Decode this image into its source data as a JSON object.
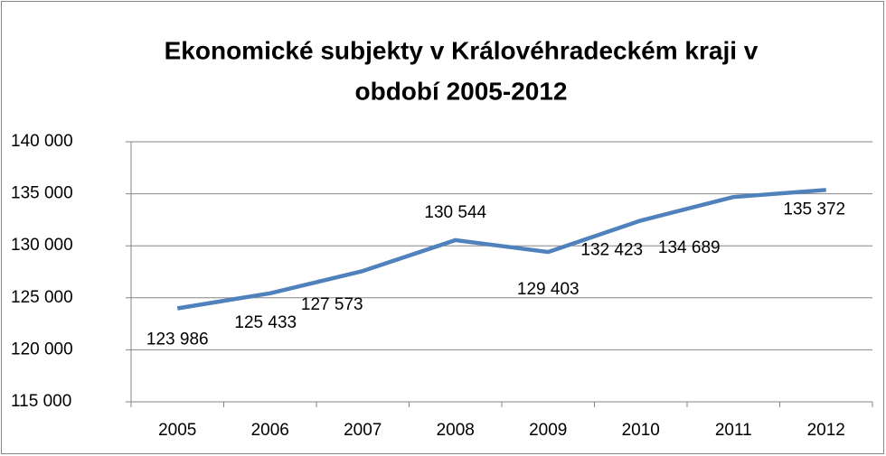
{
  "chart_data": {
    "type": "line",
    "title": "Ekonomické subjekty v Královéhradeckém kraji v období 2005-2012",
    "categories": [
      "2005",
      "2006",
      "2007",
      "2008",
      "2009",
      "2010",
      "2011",
      "2012"
    ],
    "series": [
      {
        "name": "Ekonomické subjekty",
        "color": "#4f81bd",
        "values": [
          123986,
          125433,
          127573,
          130544,
          129403,
          132423,
          134689,
          135372
        ],
        "value_labels": [
          "123 986",
          "125 433",
          "127 573",
          "130 544",
          "129 403",
          "132 423",
          "134 689",
          "135 372"
        ]
      }
    ],
    "ylim": [
      115000,
      140000
    ],
    "yticks": [
      {
        "value": 115000,
        "label": "115 000"
      },
      {
        "value": 120000,
        "label": "120 000"
      },
      {
        "value": 125000,
        "label": "125 000"
      },
      {
        "value": 130000,
        "label": "130 000"
      },
      {
        "value": 135000,
        "label": "135 000"
      },
      {
        "value": 140000,
        "label": "140 000"
      }
    ],
    "grid": true
  }
}
